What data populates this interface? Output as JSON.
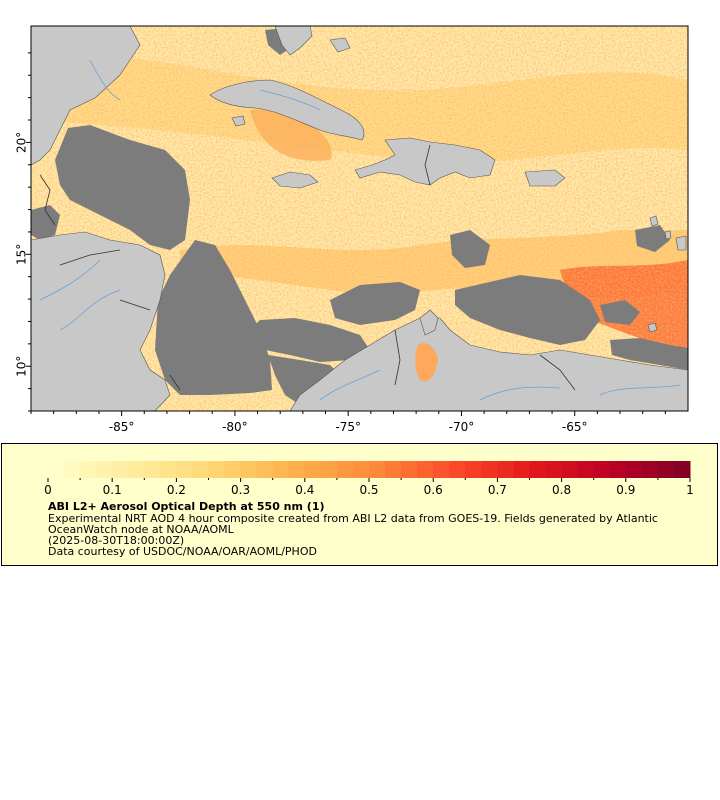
{
  "map": {
    "lon_range": [
      -89,
      -60
    ],
    "lat_range": [
      8,
      25.2
    ],
    "lon_ticks": [
      {
        "value": -85,
        "label": "-85°"
      },
      {
        "value": -80,
        "label": "-80°"
      },
      {
        "value": -75,
        "label": "-75°"
      },
      {
        "value": -70,
        "label": "-70°"
      },
      {
        "value": -65,
        "label": "-65°"
      }
    ],
    "lat_ticks": [
      {
        "value": 20,
        "label": "20°"
      },
      {
        "value": 15,
        "label": "15°"
      },
      {
        "value": 10,
        "label": "10°"
      }
    ],
    "colors": {
      "land": "#c8c8c8",
      "no_data": "#7c7c7c",
      "coast": "#555555",
      "border": "#333333",
      "rivers": "#6aa0d8",
      "aod_low": "#ffefb0"
    }
  },
  "legend": {
    "colorbar": {
      "min": 0,
      "max": 1,
      "steps": 40,
      "stops": [
        "#ffffcc",
        "#ffeda0",
        "#fed976",
        "#feb24c",
        "#fd8d3c",
        "#fc4e2a",
        "#e31a1c",
        "#bd0026",
        "#800026"
      ],
      "tick_values": [
        0,
        0.1,
        0.2,
        0.3,
        0.4,
        0.5,
        0.6,
        0.7,
        0.8,
        0.9,
        1
      ],
      "tick_labels": [
        "0",
        "0.1",
        "0.2",
        "0.3",
        "0.4",
        "0.5",
        "0.6",
        "0.7",
        "0.8",
        "0.9",
        "1"
      ]
    },
    "title": "ABI L2+ Aerosol Optical Depth at 550 nm (1)",
    "description_line1": "Experimental NRT AOD 4 hour composite created from ABI L2 data from GOES-19. Fields generated by Atlantic",
    "description_line2": "OceanWatch node at NOAA/AOML",
    "timestamp": "(2025-08-30T18:00:00Z)",
    "credit": "Data courtesy of USDOC/NOAA/OAR/AOML/PHOD"
  }
}
